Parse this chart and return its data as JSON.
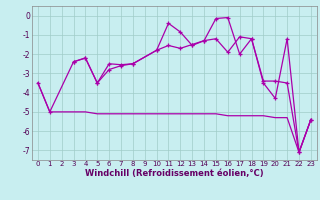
{
  "background_color": "#c8eef0",
  "grid_color": "#a0ccc8",
  "line_color": "#aa00aa",
  "marker_color": "#aa00aa",
  "xlabel": "Windchill (Refroidissement éolien,°C)",
  "xlabel_color": "#660066",
  "tick_color": "#550055",
  "ylim": [
    -7.5,
    0.5
  ],
  "xlim": [
    -0.5,
    23.5
  ],
  "yticks": [
    0,
    -1,
    -2,
    -3,
    -4,
    -5,
    -6,
    -7
  ],
  "xticks": [
    0,
    1,
    2,
    3,
    4,
    5,
    6,
    7,
    8,
    9,
    10,
    11,
    12,
    13,
    14,
    15,
    16,
    17,
    18,
    19,
    20,
    21,
    22,
    23
  ],
  "series1_x": [
    0,
    1,
    2,
    3,
    4,
    5,
    6,
    7,
    8,
    9,
    10,
    11,
    12,
    13,
    14,
    15,
    16,
    17,
    18,
    19,
    20,
    21,
    22,
    23
  ],
  "series1_y": [
    -3.5,
    -5.0,
    -5.0,
    -5.0,
    -5.0,
    -5.1,
    -5.1,
    -5.1,
    -5.1,
    -5.1,
    -5.1,
    -5.1,
    -5.1,
    -5.1,
    -5.1,
    -5.1,
    -5.2,
    -5.2,
    -5.2,
    -5.2,
    -5.3,
    -5.3,
    -7.1,
    -5.4
  ],
  "series2_x": [
    0,
    1,
    3,
    4,
    5,
    6,
    7,
    8,
    10,
    11,
    12,
    13,
    14,
    15,
    16,
    17,
    18,
    19,
    20,
    21,
    22,
    23
  ],
  "series2_y": [
    -3.5,
    -5.0,
    -2.4,
    -2.2,
    -3.5,
    -2.5,
    -2.55,
    -2.5,
    -1.8,
    -1.55,
    -1.7,
    -1.5,
    -1.3,
    -1.2,
    -1.9,
    -1.1,
    -1.2,
    -3.5,
    -4.3,
    -1.2,
    -7.1,
    -5.4
  ],
  "series3_x": [
    3,
    4,
    5,
    6,
    7,
    8,
    10,
    11,
    12,
    13,
    14,
    15,
    16,
    17,
    18,
    19,
    20,
    21,
    22,
    23
  ],
  "series3_y": [
    -2.4,
    -2.2,
    -3.5,
    -2.8,
    -2.6,
    -2.5,
    -1.8,
    -0.4,
    -0.85,
    -1.55,
    -1.3,
    -0.15,
    -0.1,
    -2.0,
    -1.2,
    -3.4,
    -3.4,
    -3.5,
    -7.1,
    -5.4
  ]
}
